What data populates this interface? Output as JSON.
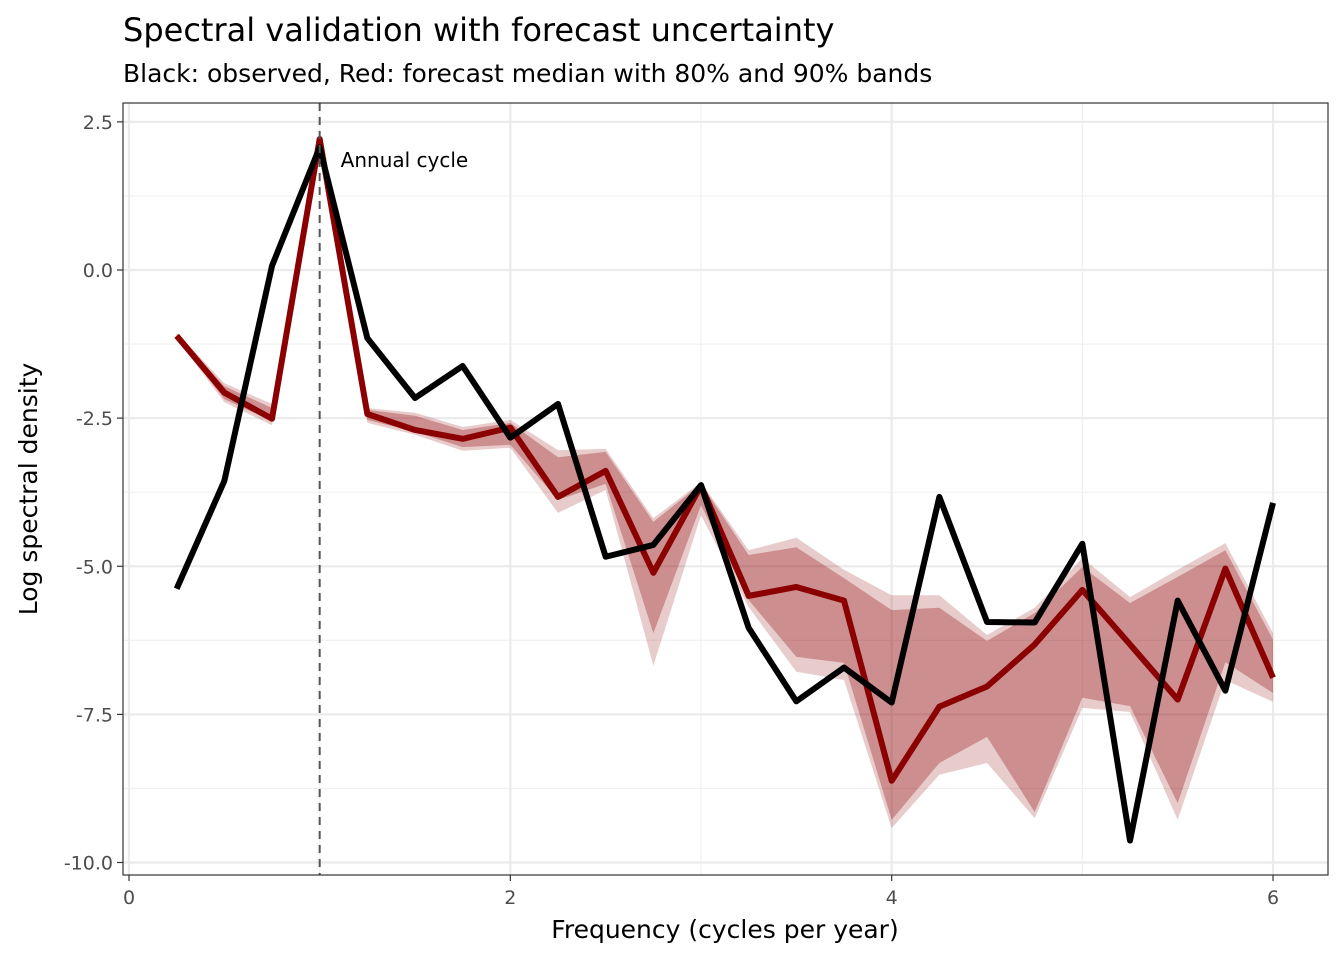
{
  "chart_data": {
    "type": "line",
    "title": "Spectral validation with forecast uncertainty",
    "subtitle": "Black: observed, Red: forecast median with 80% and 90% bands",
    "xlabel": "Frequency (cycles per year)",
    "ylabel": "Log spectral density",
    "xlim": [
      0,
      6
    ],
    "ylim": [
      -10,
      2.5
    ],
    "xticks": [
      "0",
      "2",
      "4",
      "6"
    ],
    "xtick_values": [
      0,
      2,
      4,
      6
    ],
    "yticks": [
      "2.5",
      "0.0",
      "-2.5",
      "-5.0",
      "-7.5",
      "-10.0"
    ],
    "ytick_values": [
      2.5,
      0,
      -2.5,
      -5,
      -7.5,
      -10
    ],
    "grid": true,
    "x": [
      0.25,
      0.5,
      0.75,
      1.0,
      1.25,
      1.5,
      1.75,
      2.0,
      2.25,
      2.5,
      2.75,
      3.0,
      3.25,
      3.5,
      3.75,
      4.0,
      4.25,
      4.5,
      4.75,
      5.0,
      5.25,
      5.5,
      5.75,
      6.0
    ],
    "observed": [
      -5.38,
      -3.56,
      0.07,
      2.07,
      -1.15,
      -2.16,
      -1.62,
      -2.83,
      -2.26,
      -4.84,
      -4.64,
      -3.63,
      -6.04,
      -7.28,
      -6.71,
      -7.3,
      -3.83,
      -5.94,
      -5.95,
      -4.62,
      -9.63,
      -5.58,
      -7.1,
      -3.93
    ],
    "median": [
      -1.11,
      -2.07,
      -2.51,
      2.21,
      -2.43,
      -2.7,
      -2.85,
      -2.66,
      -3.83,
      -3.39,
      -5.11,
      -3.64,
      -5.5,
      -5.35,
      -5.58,
      -8.62,
      -7.37,
      -7.03,
      -6.32,
      -5.4,
      -6.32,
      -7.25,
      -5.04,
      -6.88
    ],
    "band80_upper": [
      -1.08,
      -1.96,
      -2.33,
      2.24,
      -2.36,
      -2.46,
      -2.7,
      -2.58,
      -3.16,
      -3.07,
      -4.25,
      -3.61,
      -4.81,
      -4.68,
      -5.2,
      -5.74,
      -5.7,
      -6.26,
      -5.79,
      -5.01,
      -5.62,
      -5.18,
      -4.73,
      -6.24
    ],
    "band80_lower": [
      -1.15,
      -2.18,
      -2.55,
      2.14,
      -2.53,
      -2.73,
      -2.99,
      -2.95,
      -3.88,
      -3.61,
      -6.13,
      -3.97,
      -5.57,
      -6.53,
      -6.63,
      -9.28,
      -8.32,
      -7.88,
      -9.15,
      -7.22,
      -7.36,
      -9.0,
      -6.62,
      -7.14
    ],
    "band90_upper": [
      -1.06,
      -1.91,
      -2.26,
      2.28,
      -2.33,
      -2.41,
      -2.65,
      -2.53,
      -3.04,
      -3.02,
      -4.19,
      -3.58,
      -4.73,
      -4.52,
      -5.06,
      -5.49,
      -5.49,
      -6.16,
      -5.7,
      -4.86,
      -5.52,
      -5.06,
      -4.61,
      -6.13
    ],
    "band90_lower": [
      -1.16,
      -2.23,
      -2.62,
      2.09,
      -2.58,
      -2.78,
      -3.05,
      -3.0,
      -4.1,
      -3.71,
      -6.68,
      -4.14,
      -5.69,
      -6.78,
      -6.92,
      -9.42,
      -8.52,
      -8.32,
      -9.25,
      -7.39,
      -7.46,
      -9.28,
      -6.92,
      -7.29
    ],
    "vline": {
      "x": 1,
      "style": "dashed",
      "label": "Annual cycle"
    },
    "colors": {
      "observed": "#000000",
      "median": "#8B0000",
      "band80": "#8B0000",
      "band90": "#8B0000",
      "vline": "#555555"
    }
  }
}
